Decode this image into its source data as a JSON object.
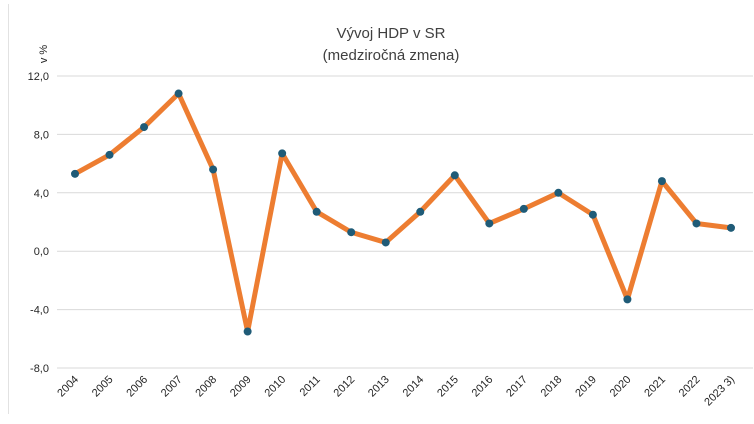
{
  "chart_data": {
    "type": "line",
    "title": "Vývoj HDP v SR",
    "subtitle": "(medziročná zmena)",
    "ylabel": "v %",
    "xlabel": "",
    "ylim": [
      -8.0,
      12.0
    ],
    "yticks": [
      "12,0",
      "8,0",
      "4,0",
      "0,0",
      "-4,0",
      "-8,0"
    ],
    "ytick_values": [
      12,
      8,
      4,
      0,
      -4,
      -8
    ],
    "categories": [
      "2004",
      "2005",
      "2006",
      "2007",
      "2008",
      "2009",
      "2010",
      "2011",
      "2012",
      "2013",
      "2014",
      "2015",
      "2016",
      "2017",
      "2018",
      "2019",
      "2020",
      "2021",
      "2022",
      "2023 3)"
    ],
    "series": [
      {
        "name": "HDP",
        "values": [
          5.3,
          6.6,
          8.5,
          10.8,
          5.6,
          -5.5,
          6.7,
          2.7,
          1.3,
          0.6,
          2.7,
          5.2,
          1.9,
          2.9,
          4.0,
          2.5,
          -3.3,
          4.8,
          1.9,
          1.6
        ],
        "line_color": "#ED7D31",
        "marker_color": "#1F5B77"
      }
    ],
    "grid": true,
    "legend": "none"
  }
}
